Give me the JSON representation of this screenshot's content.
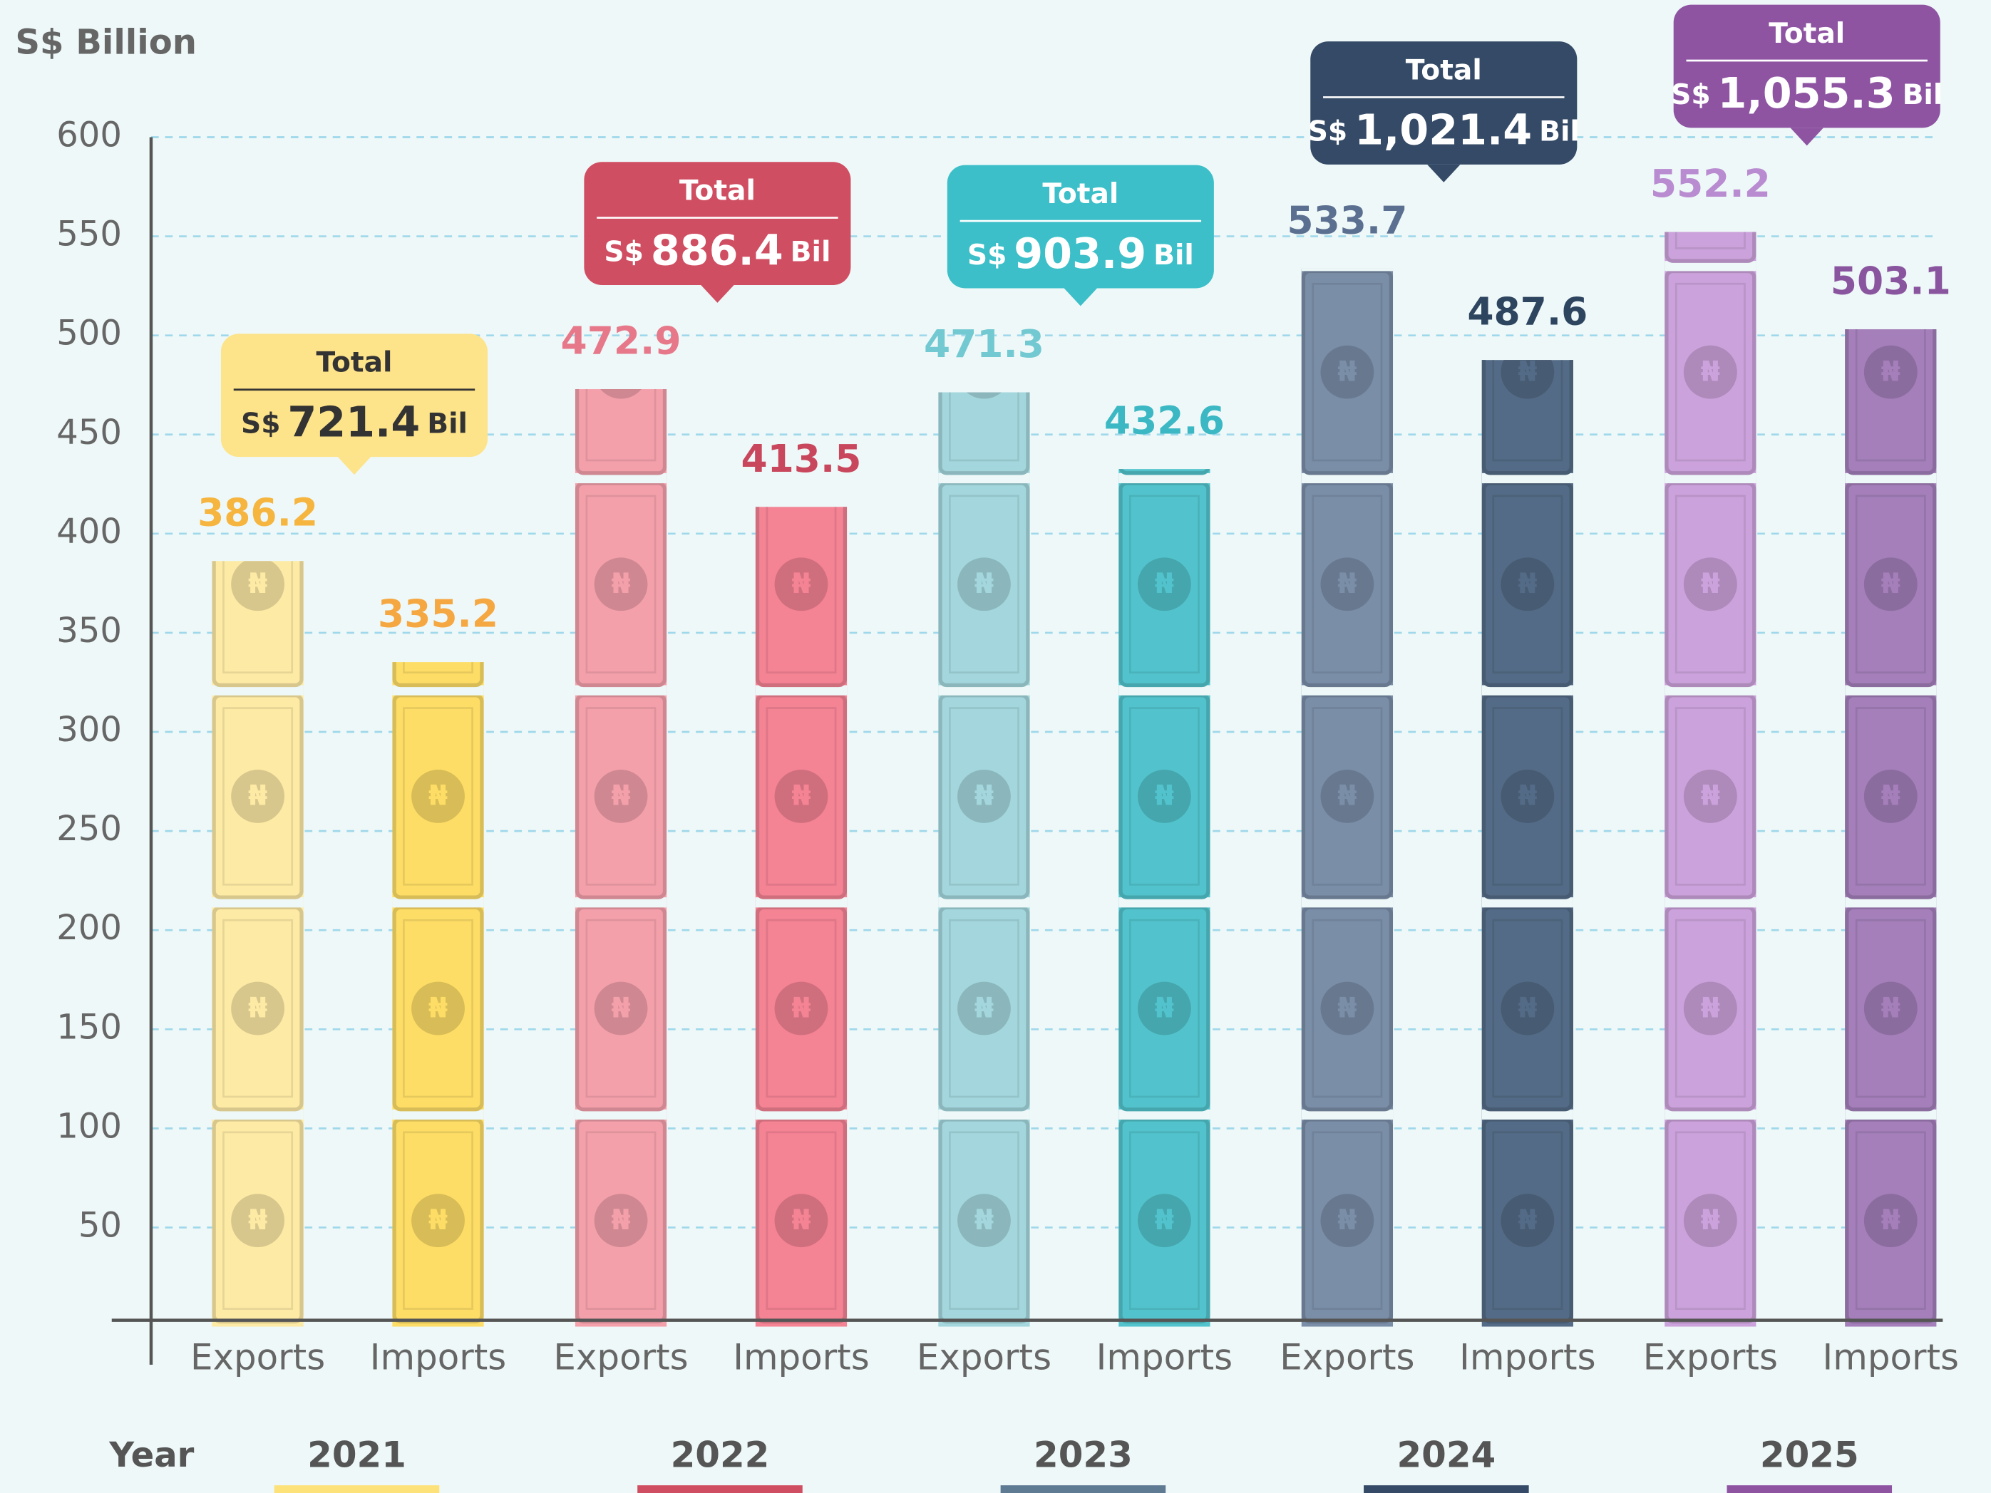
{
  "chart_data": {
    "type": "bar",
    "y_label": "S$ Billion",
    "x_label": "Year",
    "categories": [
      "Exports",
      "Imports"
    ],
    "ylim": [
      0,
      600
    ],
    "yticks": [
      50,
      100,
      150,
      200,
      250,
      300,
      350,
      400,
      450,
      500,
      550,
      600
    ],
    "grid": true,
    "total_title": "Total",
    "total_prefix": "S$",
    "total_unit": "Bil",
    "series": [
      {
        "name": "2021",
        "color": "#fde27a",
        "bar_colors": [
          "#fdeaa5",
          "#fddd66"
        ],
        "label_colors": [
          "#f5b53f",
          "#f5a742"
        ],
        "box_color": "#fde38a",
        "box_text_color": "#333333",
        "values": [
          386.2,
          335.2
        ],
        "total": 721.4,
        "total_label": "721.4"
      },
      {
        "name": "2022",
        "color": "#d04e62",
        "bar_colors": [
          "#f4a0ab",
          "#f48394"
        ],
        "label_colors": [
          "#e6788a",
          "#c9475c"
        ],
        "box_color": "#d04e62",
        "box_text_color": "#ffffff",
        "values": [
          472.9,
          413.5
        ],
        "total": 886.4,
        "total_label": "886.4"
      },
      {
        "name": "2023",
        "color": "#5f7a93",
        "bar_colors": [
          "#a3d7dd",
          "#52c3cc"
        ],
        "label_colors": [
          "#72c9d1",
          "#3bb8c4"
        ],
        "box_color": "#3cbfc8",
        "box_text_color": "#ffffff",
        "values": [
          471.3,
          432.6
        ],
        "total": 903.9,
        "total_label": "903.9"
      },
      {
        "name": "2024",
        "color": "#344a66",
        "bar_colors": [
          "#7a8ea8",
          "#536b86"
        ],
        "label_colors": [
          "#5b7091",
          "#2e4560"
        ],
        "box_color": "#344a66",
        "box_text_color": "#ffffff",
        "values": [
          533.7,
          487.6
        ],
        "total": 1021.4,
        "total_label": "1,021.4"
      },
      {
        "name": "2025",
        "color": "#8e54a2",
        "bar_colors": [
          "#cba2db",
          "#a47fba"
        ],
        "label_colors": [
          "#b98bd0",
          "#8a559f"
        ],
        "box_color": "#8e54a2",
        "box_text_color": "#ffffff",
        "values": [
          552.2,
          503.1
        ],
        "total": 1055.3,
        "total_label": "1,055.3"
      }
    ]
  }
}
